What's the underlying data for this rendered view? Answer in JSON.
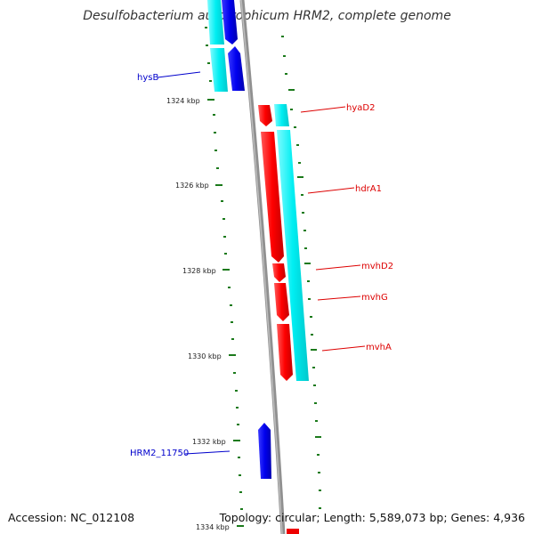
{
  "title": "Desulfobacterium autotrophicum HRM2, complete genome",
  "footer": {
    "accession": "Accession: NC_012108",
    "topology": "Topology: circular; Length: 5,589,073 bp; Genes: 4,936"
  },
  "ruler": {
    "unit": "kbp",
    "labels": [
      "1324 kbp",
      "1326 kbp",
      "1328 kbp",
      "1330 kbp",
      "1332 kbp",
      "1334 kbp"
    ]
  },
  "genes": [
    {
      "name": "hysB",
      "strand": "-",
      "color": "#0000ee"
    },
    {
      "name": "hyaD2",
      "strand": "+",
      "color": "#ee0000"
    },
    {
      "name": "hdrA1",
      "strand": "+",
      "color": "#ee0000"
    },
    {
      "name": "mvhD2",
      "strand": "+",
      "color": "#ee0000"
    },
    {
      "name": "mvhG",
      "strand": "+",
      "color": "#ee0000"
    },
    {
      "name": "mvhA",
      "strand": "+",
      "color": "#ee0000"
    },
    {
      "name": "HRM2_11750",
      "strand": "-",
      "color": "#0000ee"
    }
  ],
  "cds_track_color": "#00e8ee",
  "backbone_color": "#888888",
  "tick_color": "#1b7a1b"
}
